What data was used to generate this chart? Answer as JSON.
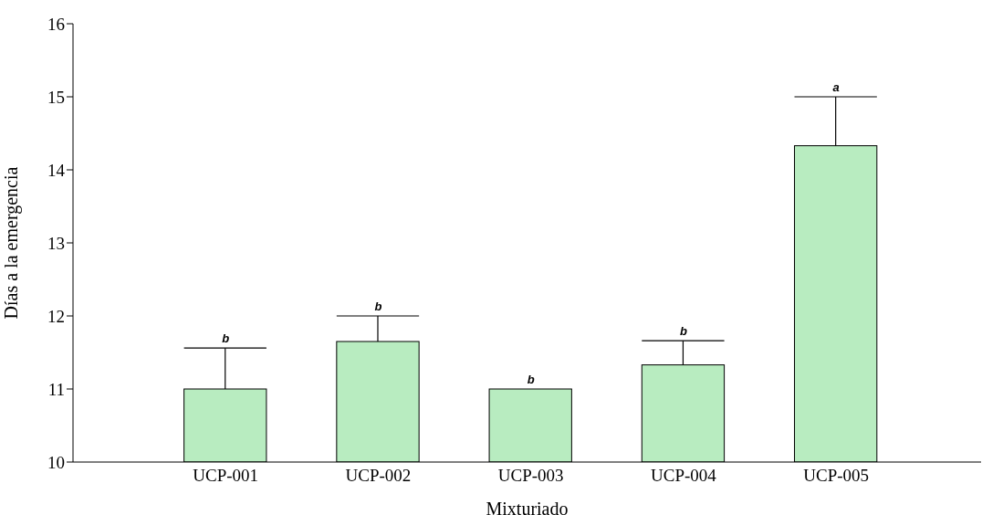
{
  "chart_data": {
    "type": "bar",
    "xlabel": "Mixturiado",
    "ylabel": "Días a la emergencia",
    "categories": [
      "UCP-001",
      "UCP-002",
      "UCP-003",
      "UCP-004",
      "UCP-005"
    ],
    "values": [
      11.0,
      11.65,
      11.0,
      11.33,
      14.33
    ],
    "errors": [
      [
        11.0,
        11.56
      ],
      [
        11.65,
        12.0
      ],
      null,
      [
        11.33,
        11.66
      ],
      [
        14.33,
        15.0
      ]
    ],
    "color": "#b8ecc0",
    "ylim": [
      10,
      16
    ],
    "yticks": [
      10,
      11,
      12,
      13,
      14,
      15,
      16
    ],
    "grid": false,
    "legend": false,
    "annotations": [
      {
        "text": "b",
        "x": "UCP-001",
        "y": 11.56
      },
      {
        "text": "b",
        "x": "UCP-002",
        "y": 12.0
      },
      {
        "text": "b",
        "x": "UCP-003",
        "y": 11.0
      },
      {
        "text": "b",
        "x": "UCP-004",
        "y": 11.66
      },
      {
        "text": "a",
        "x": "UCP-005",
        "y": 15.0
      }
    ]
  }
}
